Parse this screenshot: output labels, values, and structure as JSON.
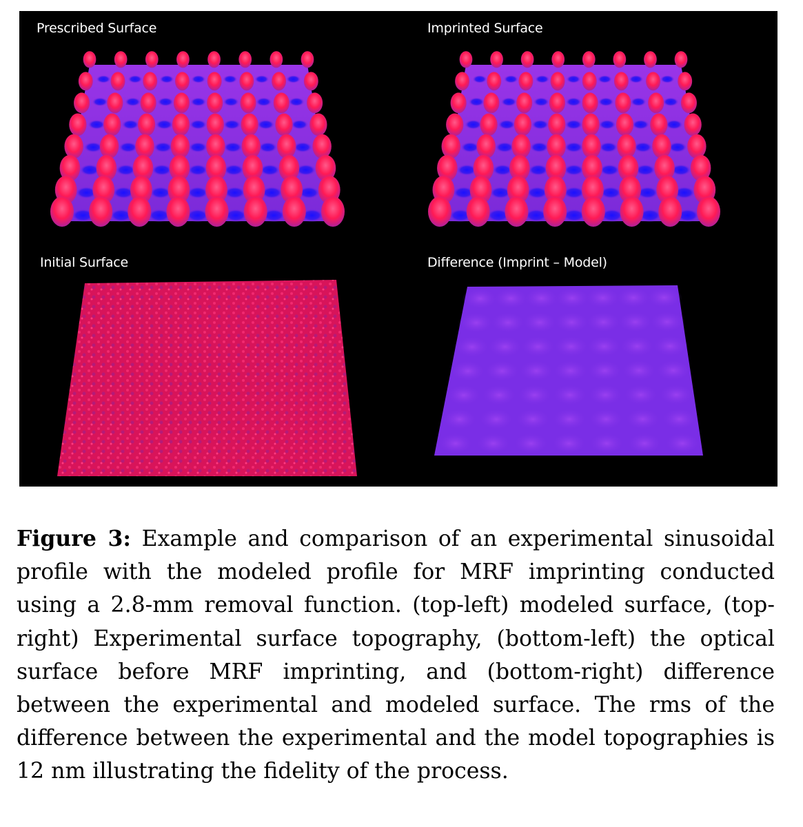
{
  "figure": {
    "panels": [
      {
        "id": "top-left",
        "label": "Prescribed Surface"
      },
      {
        "id": "top-right",
        "label": "Imprinted Surface"
      },
      {
        "id": "bottom-left",
        "label": "Initial Surface"
      },
      {
        "id": "bottom-right",
        "label": "Difference (Imprint – Model)"
      }
    ],
    "colors": {
      "background": "#000000",
      "peak": "#ff1a55",
      "mid": "#8a2be2",
      "valley": "#2a1aff",
      "initial_surface": "#e0145a",
      "difference_surface": "#7a2ee6"
    }
  },
  "caption": {
    "label": "Figure 3:",
    "text": "Example and comparison of an experimental sinusoidal profile with the modeled profile for MRF imprinting conducted using a 2.8-mm removal function. (top-left) modeled surface, (top-right) Experimental surface topography, (bottom-left) the optical surface before MRF imprinting, and (bottom-right) difference between the experimental and modeled surface. The rms of the difference between the experimental and the model topographies is 12 nm illustrating the fidelity of the process."
  }
}
